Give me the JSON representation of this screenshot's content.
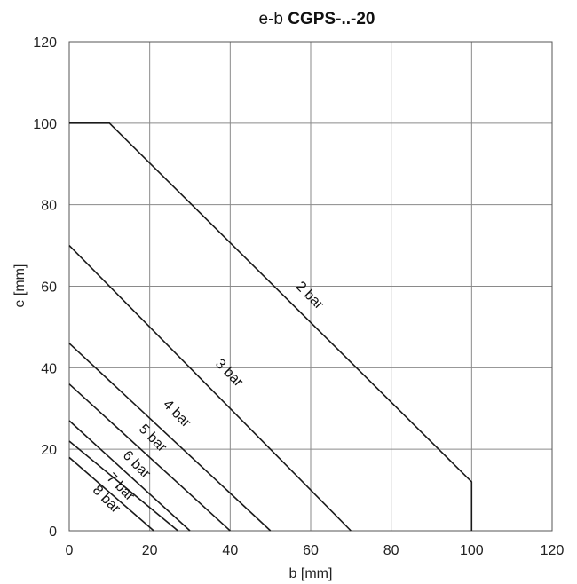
{
  "chart_data": {
    "type": "line",
    "title_prefix": "e-b",
    "title_main": "CGPS-..-20",
    "xlabel": "b [mm]",
    "ylabel": "e [mm]",
    "xlim": [
      0,
      120
    ],
    "ylim": [
      0,
      120
    ],
    "xticks": [
      0,
      20,
      40,
      60,
      80,
      100,
      120
    ],
    "yticks": [
      0,
      20,
      40,
      60,
      80,
      100,
      120
    ],
    "grid": true,
    "series": [
      {
        "name": "2 bar",
        "points": [
          [
            0,
            100
          ],
          [
            10,
            100
          ],
          [
            100,
            12
          ],
          [
            100,
            0
          ]
        ]
      },
      {
        "name": "3 bar",
        "points": [
          [
            0,
            70
          ],
          [
            70,
            0
          ]
        ]
      },
      {
        "name": "4 bar",
        "points": [
          [
            0,
            46
          ],
          [
            50,
            0
          ]
        ]
      },
      {
        "name": "5 bar",
        "points": [
          [
            0,
            36
          ],
          [
            40,
            0
          ]
        ]
      },
      {
        "name": "6 bar",
        "points": [
          [
            0,
            27
          ],
          [
            30,
            0
          ]
        ]
      },
      {
        "name": "7 bar",
        "points": [
          [
            0,
            22
          ],
          [
            27,
            0
          ]
        ]
      },
      {
        "name": "8 bar",
        "points": [
          [
            0,
            18
          ],
          [
            21,
            0
          ]
        ]
      }
    ],
    "line_labels": [
      {
        "text": "2 bar",
        "x": 59,
        "y": 57
      },
      {
        "text": "3 bar",
        "x": 39,
        "y": 38
      },
      {
        "text": "4 bar",
        "x": 26,
        "y": 28
      },
      {
        "text": "5 bar",
        "x": 20,
        "y": 22
      },
      {
        "text": "6 bar",
        "x": 16,
        "y": 15.5
      },
      {
        "text": "7 bar",
        "x": 12,
        "y": 10
      },
      {
        "text": "8 bar",
        "x": 8.5,
        "y": 7
      }
    ]
  }
}
